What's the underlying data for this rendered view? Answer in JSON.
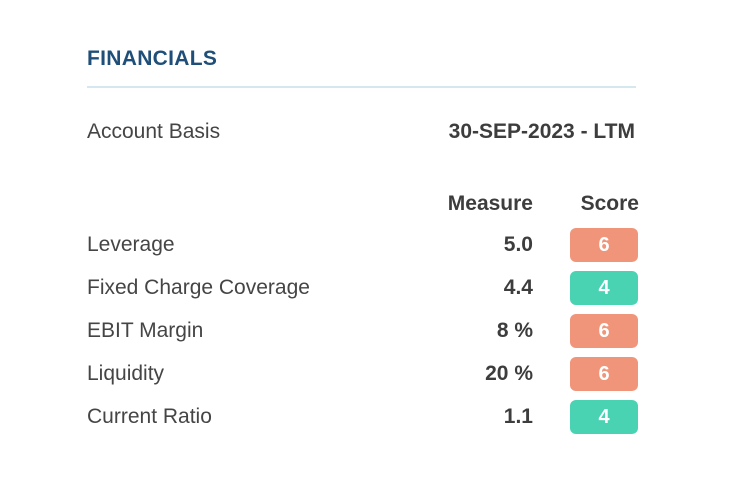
{
  "section": {
    "title": "FINANCIALS"
  },
  "account_basis": {
    "label": "Account Basis",
    "value": "30-SEP-2023 - LTM"
  },
  "table": {
    "headers": {
      "measure": "Measure",
      "score": "Score"
    },
    "rows": [
      {
        "label": "Leverage",
        "measure": "5.0",
        "score": "6",
        "score_color": "#f0957a"
      },
      {
        "label": "Fixed Charge Coverage",
        "measure": "4.4",
        "score": "4",
        "score_color": "#4ad3b2"
      },
      {
        "label": "EBIT Margin",
        "measure": "8 %",
        "score": "6",
        "score_color": "#f0957a"
      },
      {
        "label": "Liquidity",
        "measure": "20 %",
        "score": "6",
        "score_color": "#f0957a"
      },
      {
        "label": "Current Ratio",
        "measure": "1.1",
        "score": "4",
        "score_color": "#4ad3b2"
      }
    ]
  },
  "colors": {
    "title": "#1f4f78",
    "divider": "#d6e8ef",
    "score_high": "#f0957a",
    "score_low": "#4ad3b2"
  }
}
